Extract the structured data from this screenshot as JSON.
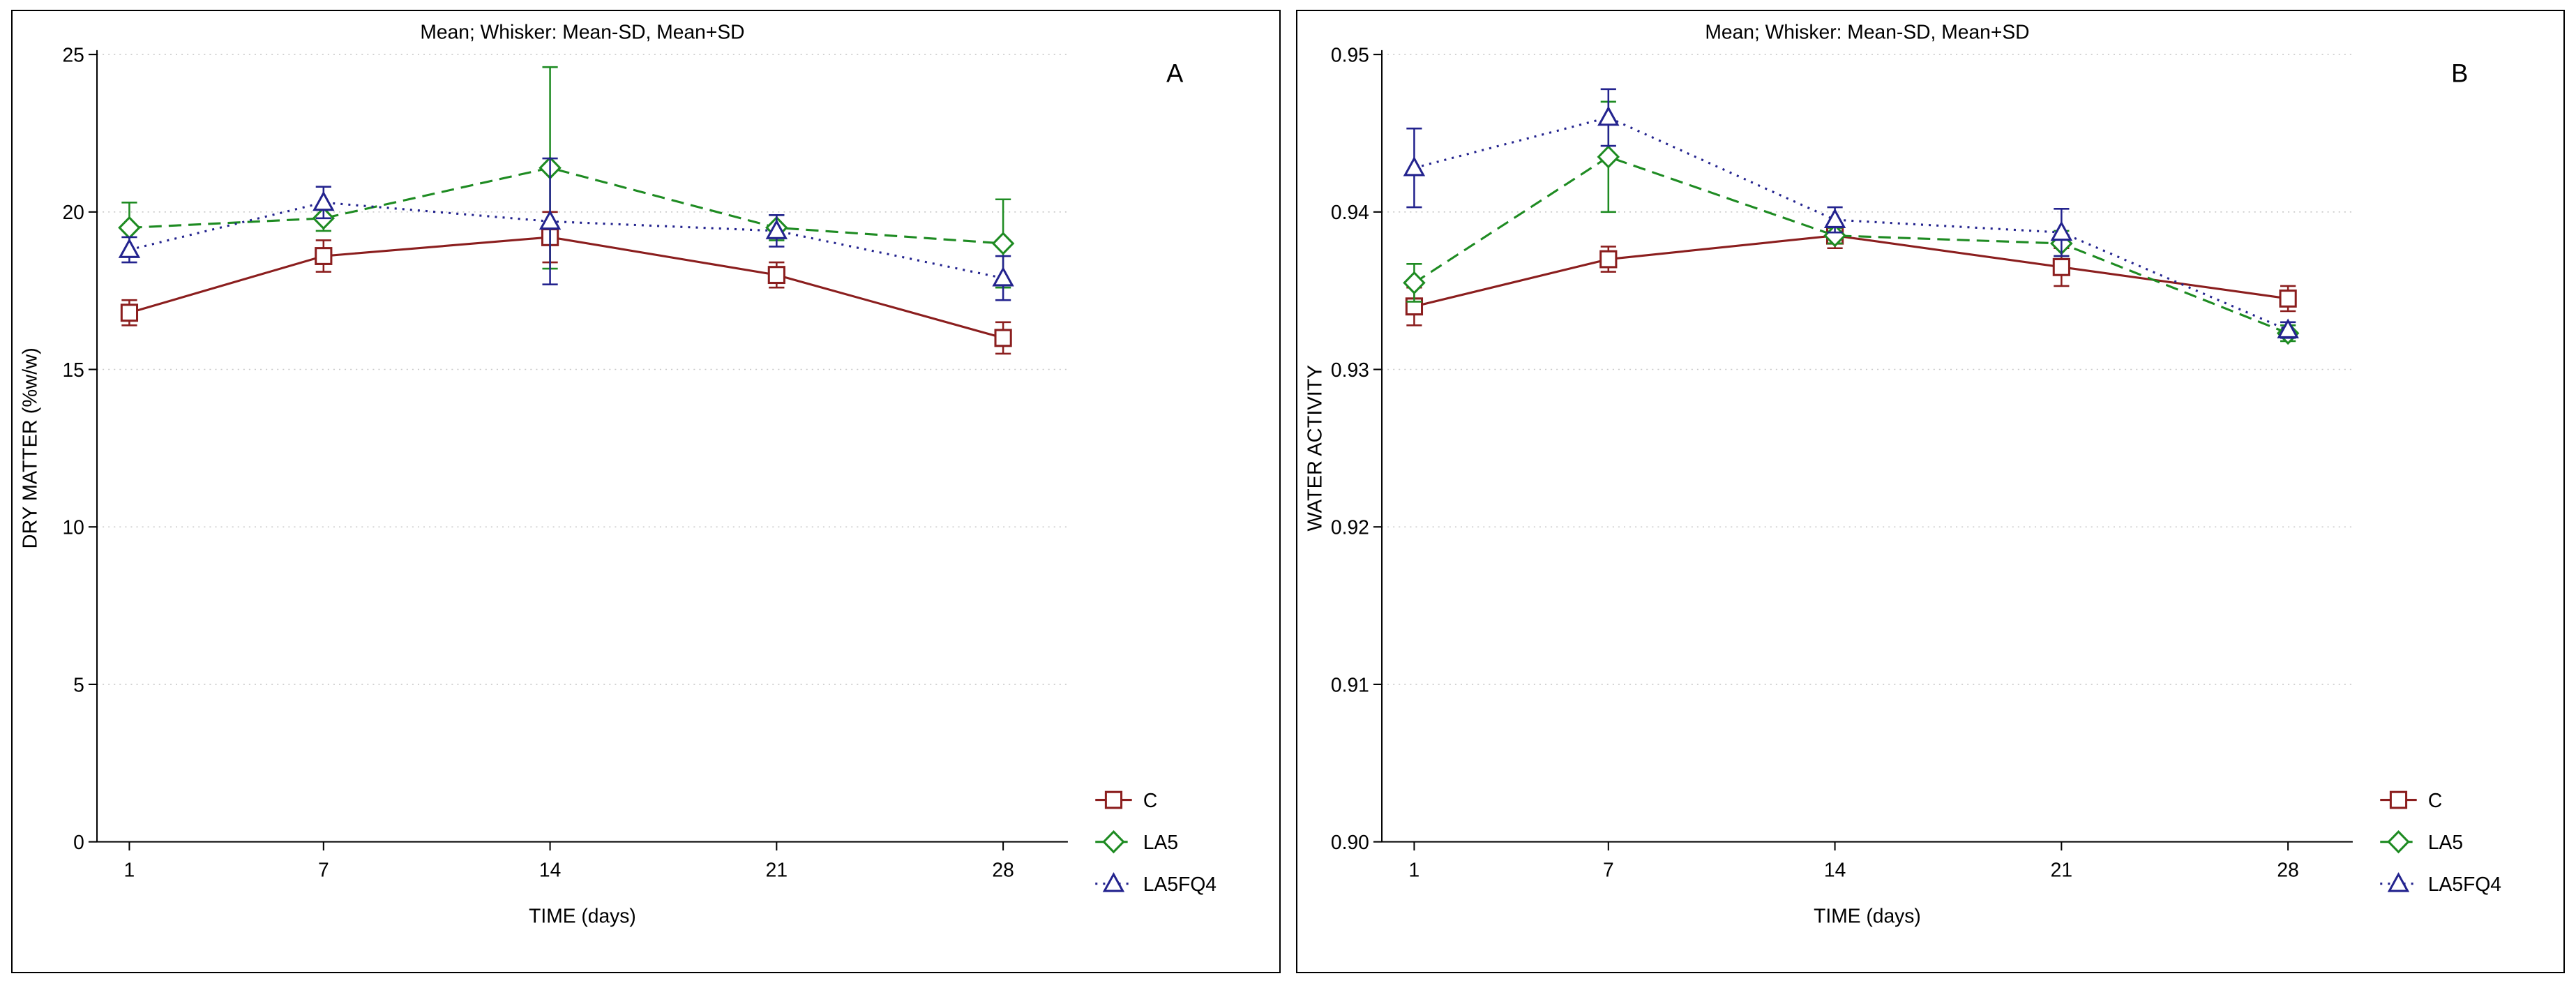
{
  "figure": {
    "background": "#ffffff",
    "border_color": "#000000",
    "grid_color": "#c8c8c8",
    "axis_color": "#000000"
  },
  "panels": [
    {
      "panel_label": "A",
      "chart_data": {
        "type": "line",
        "title": "Mean;  Whisker: Mean-SD, Mean+SD",
        "xlabel": "TIME (days)",
        "ylabel": "DRY MATTER (%w/w)",
        "x": [
          1,
          7,
          14,
          21,
          28
        ],
        "xlim": [
          0,
          30
        ],
        "ylim": [
          0,
          25
        ],
        "yticks": [
          0,
          5,
          10,
          15,
          20,
          25
        ],
        "ytick_labels": [
          "0",
          "5",
          "10",
          "15",
          "20",
          "25"
        ],
        "grid": true,
        "legend_position": "bottom-right-outside",
        "series": [
          {
            "name": "C",
            "color": "#8B1E1E",
            "marker": "square",
            "linestyle": "solid",
            "values": [
              16.8,
              18.6,
              19.2,
              18.0,
              16.0
            ],
            "sd": [
              0.4,
              0.5,
              0.8,
              0.4,
              0.5
            ]
          },
          {
            "name": "LA5",
            "color": "#1E8B22",
            "marker": "diamond",
            "linestyle": "dashed",
            "values": [
              19.5,
              19.8,
              21.4,
              19.5,
              19.0
            ],
            "sd": [
              0.8,
              0.4,
              3.2,
              0.4,
              1.4
            ]
          },
          {
            "name": "LA5FQ4",
            "color": "#23238E",
            "marker": "triangle",
            "linestyle": "dotted",
            "values": [
              18.8,
              20.3,
              19.7,
              19.4,
              17.9
            ],
            "sd": [
              0.4,
              0.5,
              2.0,
              0.5,
              0.7
            ]
          }
        ]
      }
    },
    {
      "panel_label": "B",
      "chart_data": {
        "type": "line",
        "title": "Mean;  Whisker: Mean-SD, Mean+SD",
        "xlabel": "TIME (days)",
        "ylabel": "WATER ACTIVITY",
        "x": [
          1,
          7,
          14,
          21,
          28
        ],
        "xlim": [
          0,
          30
        ],
        "ylim": [
          0.9,
          0.95
        ],
        "yticks": [
          0.9,
          0.91,
          0.92,
          0.93,
          0.94,
          0.95
        ],
        "ytick_labels": [
          "0.90",
          "0.91",
          "0.92",
          "0.93",
          "0.94",
          "0.95"
        ],
        "grid": true,
        "legend_position": "bottom-right-outside",
        "series": [
          {
            "name": "C",
            "color": "#8B1E1E",
            "marker": "square",
            "linestyle": "solid",
            "values": [
              0.934,
              0.937,
              0.9385,
              0.9365,
              0.9345
            ],
            "sd": [
              0.0012,
              0.0008,
              0.0008,
              0.0012,
              0.0008
            ]
          },
          {
            "name": "LA5",
            "color": "#1E8B22",
            "marker": "diamond",
            "linestyle": "dashed",
            "values": [
              0.9355,
              0.9435,
              0.9385,
              0.938,
              0.9323
            ],
            "sd": [
              0.0012,
              0.0035,
              0.0005,
              0.0008,
              0.0005
            ]
          },
          {
            "name": "LA5FQ4",
            "color": "#23238E",
            "marker": "triangle",
            "linestyle": "dotted",
            "values": [
              0.9428,
              0.946,
              0.9395,
              0.9387,
              0.9325
            ],
            "sd": [
              0.0025,
              0.0018,
              0.0008,
              0.0015,
              0.0005
            ]
          }
        ]
      }
    }
  ]
}
